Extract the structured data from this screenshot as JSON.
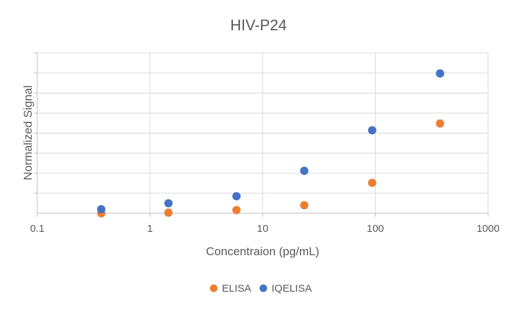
{
  "chart_data": {
    "type": "scatter",
    "title": "HIV-P24",
    "xlabel": "Concentraion (pg/mL)",
    "ylabel": "Normalized Signal",
    "x_scale": "log",
    "xlim": [
      0.1,
      1000
    ],
    "x_ticks": [
      "0.1",
      "1",
      "10",
      "100",
      "1000"
    ],
    "ylim": [
      0,
      8
    ],
    "y_tick_count": 8,
    "grid": true,
    "legend_position": "bottom",
    "series": [
      {
        "name": "ELISA",
        "color": "#ED7D31",
        "x": [
          0.37,
          1.46,
          5.86,
          23.4,
          93.75,
          375
        ],
        "y": [
          0.0,
          0.03,
          0.16,
          0.4,
          1.52,
          4.48
        ]
      },
      {
        "name": "IQELISA",
        "color": "#4472C4",
        "x": [
          0.37,
          1.46,
          5.86,
          23.4,
          93.75,
          375
        ],
        "y": [
          0.2,
          0.5,
          0.85,
          2.12,
          4.14,
          6.98
        ]
      }
    ]
  }
}
